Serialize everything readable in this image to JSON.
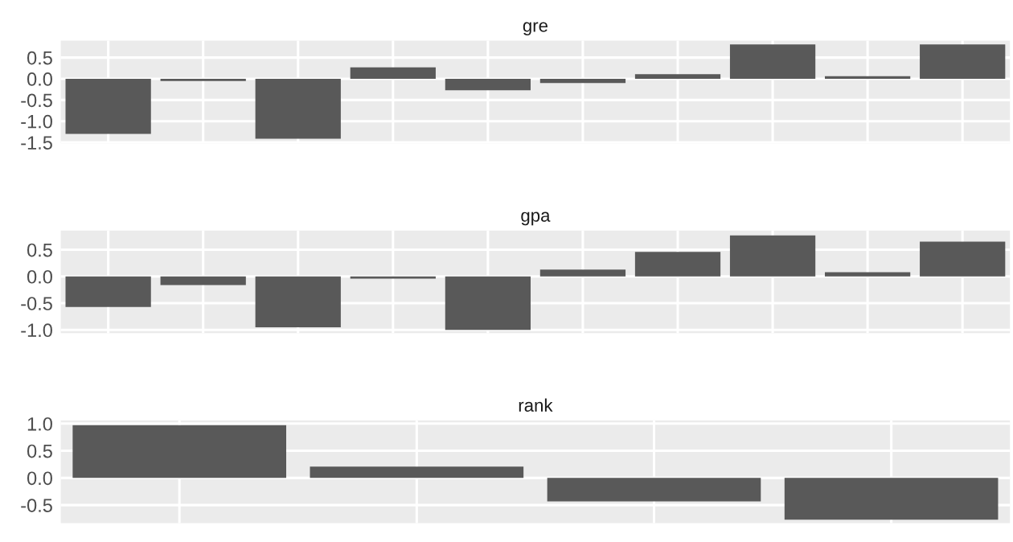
{
  "chart_data": [
    {
      "type": "bar",
      "title": "gre",
      "categories": [
        null,
        null,
        null,
        null,
        null,
        null,
        null,
        null,
        null,
        null
      ],
      "values": [
        -1.3,
        -0.05,
        -1.41,
        0.27,
        -0.27,
        -0.1,
        0.11,
        0.81,
        0.06,
        0.81
      ],
      "color": "#595959",
      "ylim": [
        -1.52,
        0.9
      ],
      "yticks": [
        -1.5,
        {
          "value": -1,
          "label": "-1.0"
        },
        -0.5,
        {
          "value": 0,
          "label": "0.0"
        },
        0.5
      ],
      "grid": true,
      "tick_labels": "y"
    },
    {
      "type": "bar",
      "title": "gpa",
      "categories": [
        null,
        null,
        null,
        null,
        null,
        null,
        null,
        null,
        null,
        null
      ],
      "values": [
        -0.57,
        -0.16,
        -0.95,
        -0.04,
        -1.0,
        0.13,
        0.46,
        0.77,
        0.08,
        0.65
      ],
      "color": "#595959",
      "ylim": [
        -1.06,
        0.86
      ],
      "yticks": [
        {
          "value": -1,
          "label": "-1.0"
        },
        -0.5,
        {
          "value": 0,
          "label": "0.0"
        },
        0.5
      ],
      "grid": true,
      "tick_labels": "y"
    },
    {
      "type": "bar",
      "title": "rank",
      "categories": [
        null,
        null,
        null,
        null
      ],
      "values": [
        0.97,
        0.21,
        -0.43,
        -0.77
      ],
      "color": "#595959",
      "ylim": [
        -0.83,
        1.06
      ],
      "yticks": [
        -0.5,
        {
          "value": 0,
          "label": "0.0"
        },
        0.5,
        {
          "value": 1,
          "label": "1.0"
        }
      ],
      "grid": true,
      "tick_labels": "y"
    }
  ]
}
